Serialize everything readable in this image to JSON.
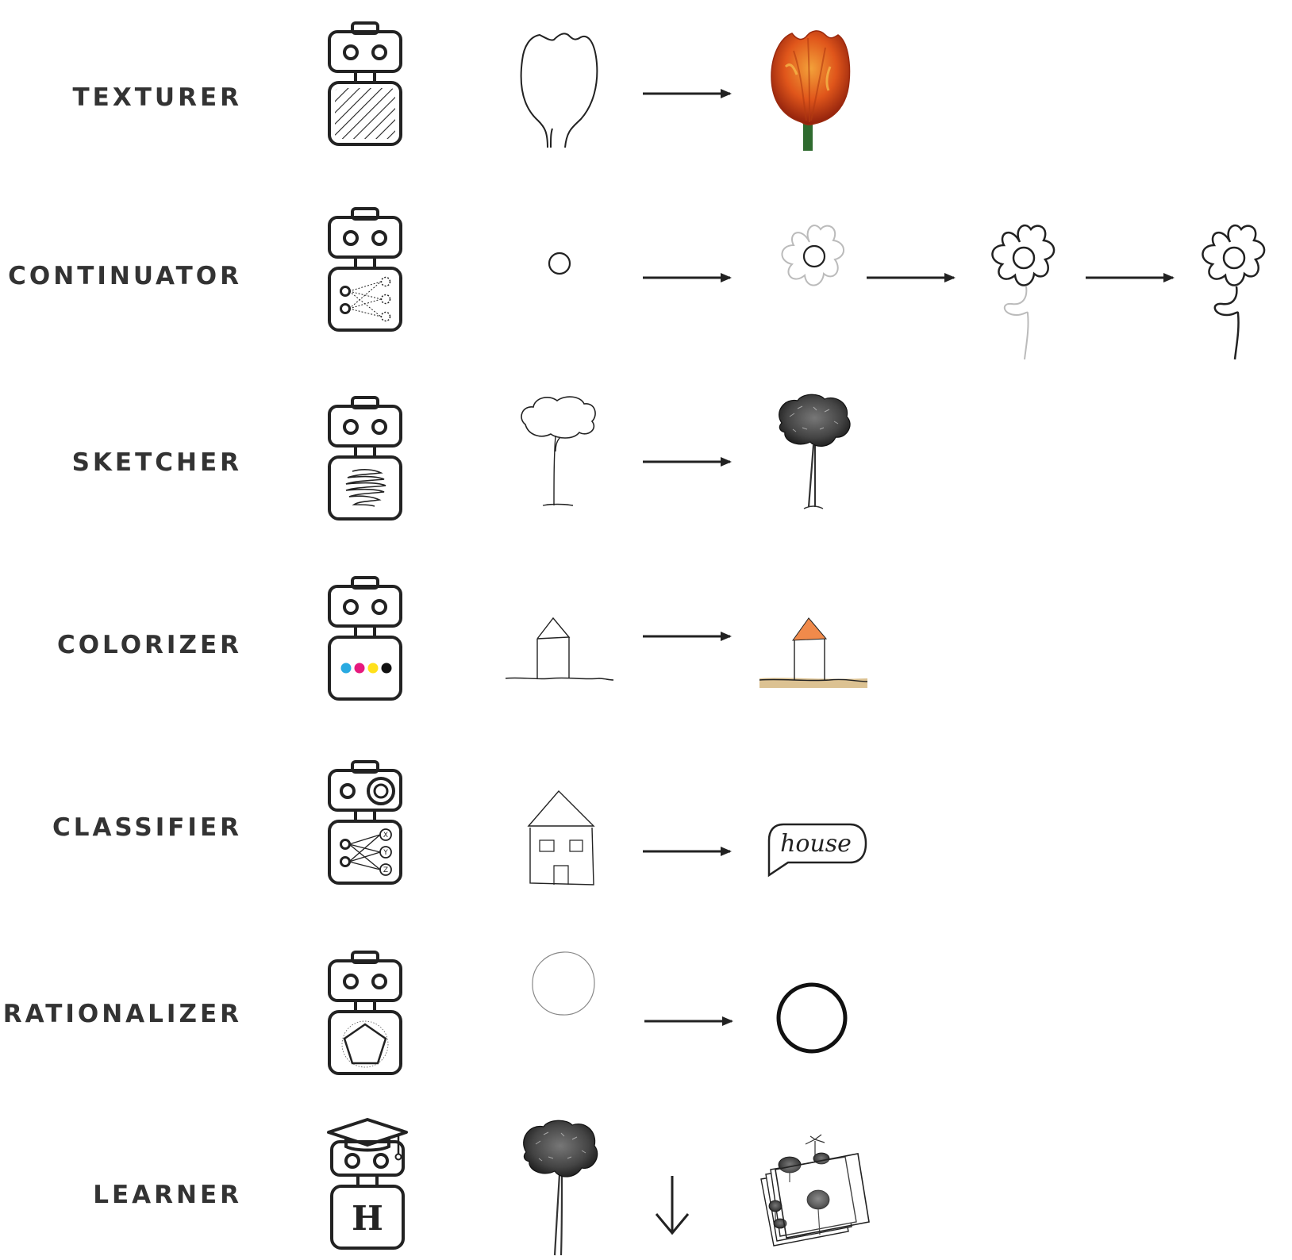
{
  "agents": [
    {
      "label": "TEXTURER"
    },
    {
      "label": "CONTINUATOR"
    },
    {
      "label": "SKETCHER"
    },
    {
      "label": "COLORIZER"
    },
    {
      "label": "CLASSIFIER",
      "output_word": "house",
      "node_labels": [
        "X",
        "Y",
        "Z"
      ]
    },
    {
      "label": "RATIONALIZER"
    },
    {
      "label": "LEARNER",
      "badge_letter": "H"
    }
  ],
  "colors": {
    "ink": "#222222",
    "label": "#333333",
    "tulip_orange": "#e0561b",
    "tulip_stem": "#2f6b2f",
    "roof_orange": "#f08a4b",
    "ground_tan": "#dcc292",
    "cyan": "#29aae1",
    "magenta": "#e6197d",
    "yellow": "#ffe01b",
    "black": "#111111"
  },
  "icons": [
    "robot-icon",
    "hatch-pattern-icon",
    "neural-net-icon",
    "scribble-icon",
    "color-dots-icon",
    "camera-lens-icon",
    "pentagon-icon",
    "graduation-cap-icon",
    "arrow-right-icon",
    "arrow-down-icon",
    "speech-bubble-icon",
    "folder-icon"
  ]
}
